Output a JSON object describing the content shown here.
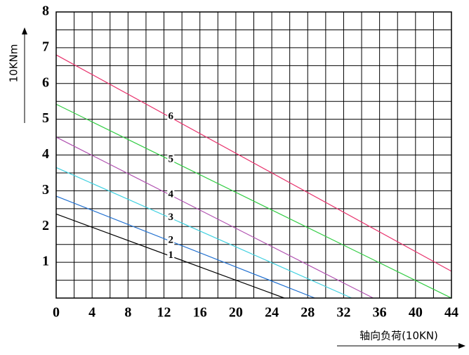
{
  "chart_data": {
    "type": "line",
    "y_label": "10KNm",
    "x_label": "轴向负荷(10KN)",
    "xlim": [
      0,
      44
    ],
    "ylim": [
      0,
      8
    ],
    "xticks": [
      0,
      4,
      8,
      12,
      16,
      20,
      24,
      28,
      32,
      36,
      40,
      44
    ],
    "yticks": [
      1,
      2,
      3,
      4,
      5,
      6,
      7,
      8
    ],
    "x_gridlines": [
      0,
      2,
      4,
      6,
      8,
      10,
      12,
      14,
      16,
      18,
      20,
      22,
      24,
      26,
      28,
      30,
      32,
      34,
      36,
      38,
      40,
      42,
      44
    ],
    "y_gridlines": [
      0,
      0.5,
      1,
      1.5,
      2,
      2.5,
      3,
      3.5,
      4,
      4.5,
      5,
      5.5,
      6,
      6.5,
      7,
      7.5,
      8
    ],
    "grid": true,
    "series": [
      {
        "name": "1",
        "color": "#000000",
        "x": [
          0,
          25.4
        ],
        "values": [
          2.35,
          0
        ]
      },
      {
        "name": "2",
        "color": "#2070d0",
        "x": [
          0,
          28.8
        ],
        "values": [
          2.85,
          0
        ]
      },
      {
        "name": "3",
        "color": "#40d0e0",
        "x": [
          0,
          32.9
        ],
        "values": [
          3.65,
          0
        ]
      },
      {
        "name": "4",
        "color": "#b050b0",
        "x": [
          0,
          35.3
        ],
        "values": [
          4.5,
          0
        ]
      },
      {
        "name": "5",
        "color": "#33cc44",
        "x": [
          0,
          44
        ],
        "values": [
          5.42,
          0
        ]
      },
      {
        "name": "6",
        "color": "#e8336d",
        "x": [
          0,
          44
        ],
        "values": [
          6.8,
          0.75
        ]
      }
    ]
  }
}
